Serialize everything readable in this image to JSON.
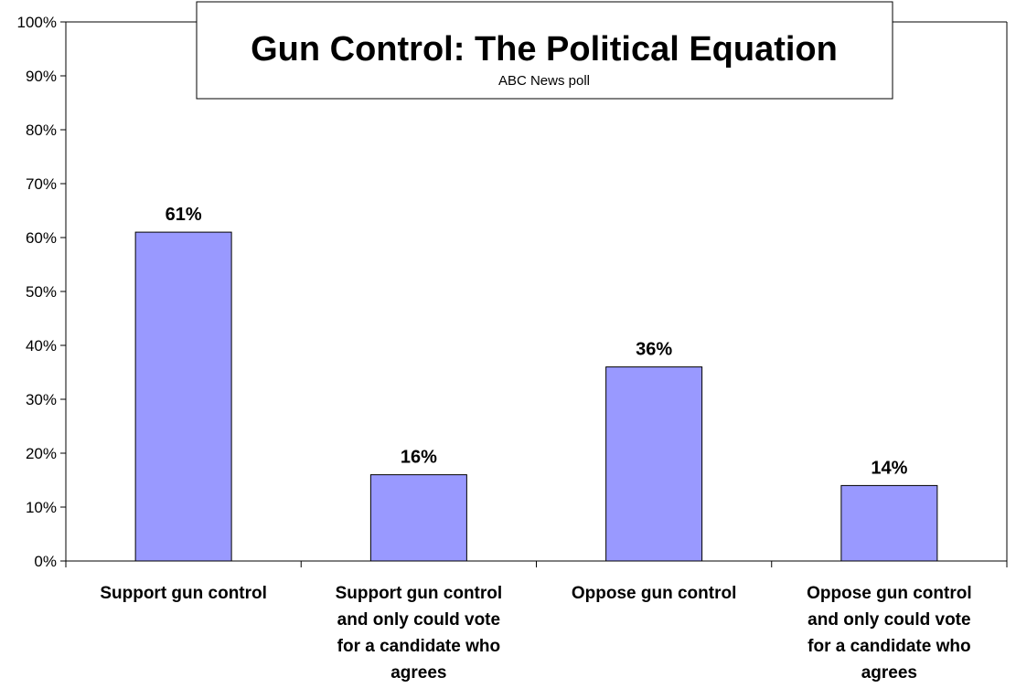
{
  "chart_data": {
    "type": "bar",
    "title": "Gun Control: The Political Equation",
    "subtitle": "ABC News poll",
    "categories": [
      [
        "Support gun control"
      ],
      [
        "Support gun control",
        "and only could vote",
        "for a candidate who",
        "agrees"
      ],
      [
        "Oppose gun control"
      ],
      [
        "Oppose gun control",
        "and only could vote",
        "for a candidate who",
        "agrees"
      ]
    ],
    "values": [
      61,
      16,
      36,
      14
    ],
    "data_labels": [
      "61%",
      "16%",
      "36%",
      "14%"
    ],
    "y_ticks": [
      "0%",
      "10%",
      "20%",
      "30%",
      "40%",
      "50%",
      "60%",
      "70%",
      "80%",
      "90%",
      "100%"
    ],
    "ylim": [
      0,
      100
    ],
    "bar_color": "#9999ff",
    "grid": false,
    "legend": "none"
  }
}
